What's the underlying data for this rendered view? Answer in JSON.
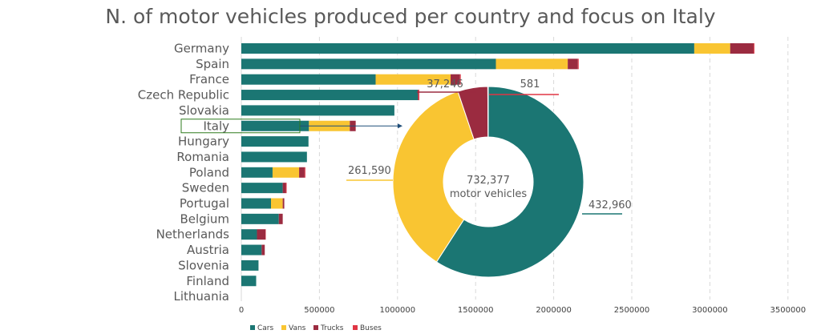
{
  "title": "N. of motor vehicles produced per country and focus on Italy",
  "colors": {
    "cars": "#1b7673",
    "vans": "#f9c532",
    "trucks": "#9b2b40",
    "buses": "#e03544",
    "highlight": "#2f7b1e"
  },
  "chart_data": [
    {
      "type": "bar",
      "orientation": "horizontal",
      "stacked": true,
      "categories": [
        "Germany",
        "Spain",
        "France",
        "Czech Republic",
        "Slovakia",
        "Italy",
        "Hungary",
        "Romania",
        "Poland",
        "Sweden",
        "Portugal",
        "Belgium",
        "Netherlands",
        "Austria",
        "Slovenia",
        "Finland",
        "Lithuania"
      ],
      "highlighted_category": "Italy",
      "series": [
        {
          "name": "Cars",
          "values": [
            2900000,
            1630000,
            860000,
            1130000,
            980000,
            432960,
            430000,
            420000,
            200000,
            265000,
            190000,
            240000,
            100000,
            130000,
            110000,
            95000,
            0
          ]
        },
        {
          "name": "Vans",
          "values": [
            230000,
            460000,
            480000,
            0,
            0,
            261590,
            0,
            0,
            170000,
            0,
            75000,
            0,
            0,
            0,
            0,
            0,
            0
          ]
        },
        {
          "name": "Trucks",
          "values": [
            150000,
            65000,
            60000,
            5000,
            0,
            37246,
            0,
            0,
            35000,
            20000,
            10000,
            25000,
            55000,
            20000,
            0,
            0,
            0
          ]
        },
        {
          "name": "Buses",
          "values": [
            5000,
            5000,
            5000,
            5000,
            0,
            581,
            0,
            0,
            5000,
            5000,
            0,
            0,
            2000,
            0,
            0,
            0,
            0
          ]
        }
      ],
      "xlim": [
        0,
        3500000
      ],
      "xticks": [
        "0",
        "500000",
        "1000000",
        "1500000",
        "2000000",
        "2500000",
        "3000000",
        "3500000"
      ],
      "grid": true,
      "legend": [
        "Cars",
        "Vans",
        "Trucks",
        "Buses"
      ],
      "legend_position": "bottom"
    },
    {
      "type": "pie",
      "donut": true,
      "title": "Italy",
      "center_value": "732,377",
      "center_text": "motor vehicles",
      "slices": [
        {
          "name": "Cars",
          "value": 432960,
          "label": "432,960"
        },
        {
          "name": "Vans",
          "value": 261590,
          "label": "261,590"
        },
        {
          "name": "Trucks",
          "value": 37246,
          "label": "37,246"
        },
        {
          "name": "Buses",
          "value": 581,
          "label": "581"
        }
      ]
    }
  ]
}
